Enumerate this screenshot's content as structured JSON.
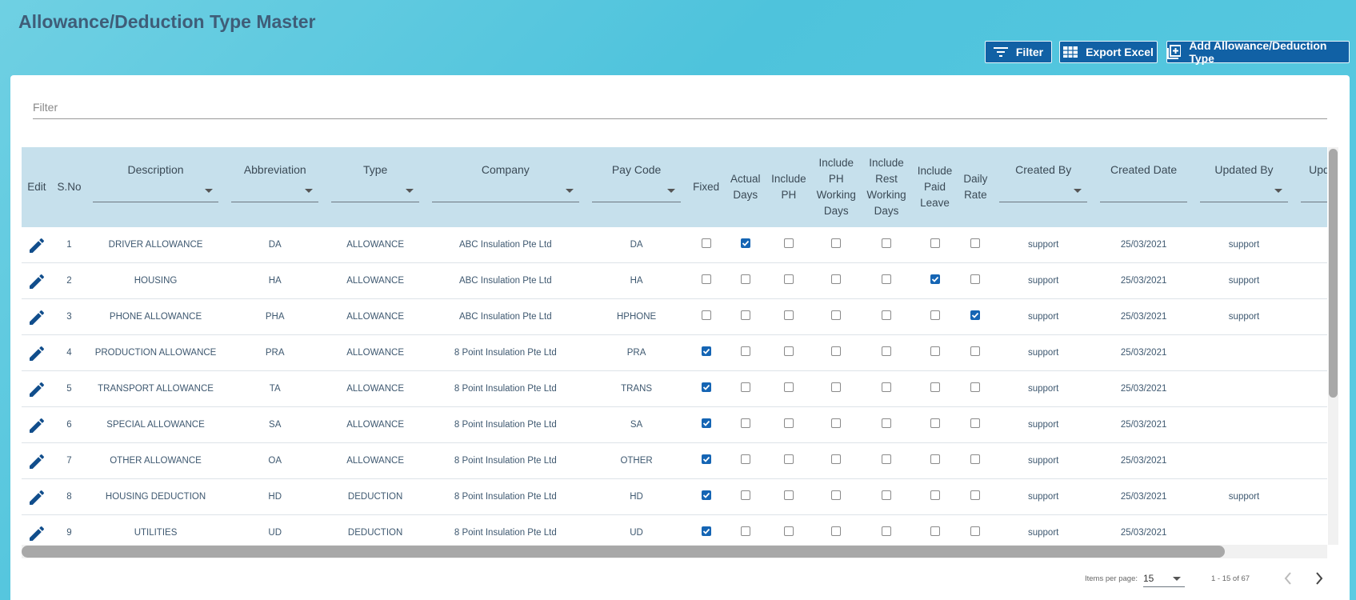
{
  "header": {
    "title": "Allowance/Deduction Type Master",
    "buttons": [
      "Filter",
      "Export Excel",
      "Add Allowance/Deduction Type"
    ]
  },
  "filter": {
    "placeholder": "Filter"
  },
  "table": {
    "columns": [
      "Edit",
      "S.No",
      "Description",
      "Abbreviation",
      "Type",
      "Company",
      "Pay Code",
      "Fixed",
      "Actual Days",
      "Include PH",
      "Include PH Working Days",
      "Include Rest Working Days",
      "Include Paid Leave",
      "Daily Rate",
      "Created By",
      "Created Date",
      "Updated By",
      "Updated Date"
    ],
    "rows": [
      {
        "sno": 1,
        "description": "DRIVER ALLOWANCE",
        "abbreviation": "DA",
        "type": "ALLOWANCE",
        "company": "ABC Insulation Pte Ltd",
        "pay_code": "DA",
        "checks": [
          false,
          true,
          false,
          false,
          false,
          false,
          false
        ],
        "created_by": "support",
        "created_date": "25/03/2021",
        "updated_by": "support"
      },
      {
        "sno": 2,
        "description": "HOUSING",
        "abbreviation": "HA",
        "type": "ALLOWANCE",
        "company": "ABC Insulation Pte Ltd",
        "pay_code": "HA",
        "checks": [
          false,
          false,
          false,
          false,
          false,
          true,
          false
        ],
        "created_by": "support",
        "created_date": "25/03/2021",
        "updated_by": "support"
      },
      {
        "sno": 3,
        "description": "PHONE ALLOWANCE",
        "abbreviation": "PHA",
        "type": "ALLOWANCE",
        "company": "ABC Insulation Pte Ltd",
        "pay_code": "HPHONE",
        "checks": [
          false,
          false,
          false,
          false,
          false,
          false,
          true
        ],
        "created_by": "support",
        "created_date": "25/03/2021",
        "updated_by": "support"
      },
      {
        "sno": 4,
        "description": "PRODUCTION ALLOWANCE",
        "abbreviation": "PRA",
        "type": "ALLOWANCE",
        "company": "8 Point Insulation Pte Ltd",
        "pay_code": "PRA",
        "checks": [
          true,
          false,
          false,
          false,
          false,
          false,
          false
        ],
        "created_by": "support",
        "created_date": "25/03/2021",
        "updated_by": null
      },
      {
        "sno": 5,
        "description": "TRANSPORT ALLOWANCE",
        "abbreviation": "TA",
        "type": "ALLOWANCE",
        "company": "8 Point Insulation Pte Ltd",
        "pay_code": "TRANS",
        "checks": [
          true,
          false,
          false,
          false,
          false,
          false,
          false
        ],
        "created_by": "support",
        "created_date": "25/03/2021",
        "updated_by": null
      },
      {
        "sno": 6,
        "description": "SPECIAL ALLOWANCE",
        "abbreviation": "SA",
        "type": "ALLOWANCE",
        "company": "8 Point Insulation Pte Ltd",
        "pay_code": "SA",
        "checks": [
          true,
          false,
          false,
          false,
          false,
          false,
          false
        ],
        "created_by": "support",
        "created_date": "25/03/2021",
        "updated_by": null
      },
      {
        "sno": 7,
        "description": "OTHER ALLOWANCE",
        "abbreviation": "OA",
        "type": "ALLOWANCE",
        "company": "8 Point Insulation Pte Ltd",
        "pay_code": "OTHER",
        "checks": [
          true,
          false,
          false,
          false,
          false,
          false,
          false
        ],
        "created_by": "support",
        "created_date": "25/03/2021",
        "updated_by": null
      },
      {
        "sno": 8,
        "description": "HOUSING DEDUCTION",
        "abbreviation": "HD",
        "type": "DEDUCTION",
        "company": "8 Point Insulation Pte Ltd",
        "pay_code": "HD",
        "checks": [
          true,
          false,
          false,
          false,
          false,
          false,
          false
        ],
        "created_by": "support",
        "created_date": "25/03/2021",
        "updated_by": "support"
      },
      {
        "sno": 9,
        "description": "UTILITIES",
        "abbreviation": "UD",
        "type": "DEDUCTION",
        "company": "8 Point Insulation Pte Ltd",
        "pay_code": "UD",
        "checks": [
          true,
          false,
          false,
          false,
          false,
          false,
          false
        ],
        "created_by": "support",
        "created_date": "25/03/2021",
        "updated_by": null
      }
    ]
  },
  "pagination": {
    "items_per_page_label": "Items per page:",
    "items_per_page": 15,
    "range": "1 - 15 of 67"
  }
}
